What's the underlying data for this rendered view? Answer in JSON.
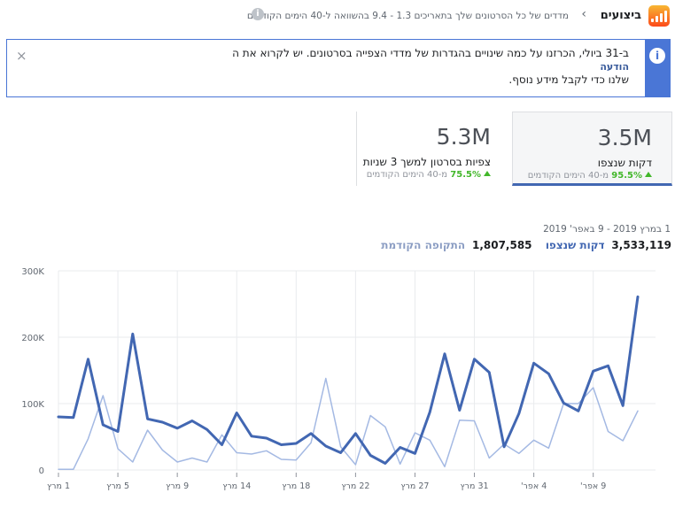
{
  "header": {
    "title": "ביצועים",
    "description": "מדדים של כל הסרטונים שלך בתאריכים 1.3 - 9.4 בהשוואה ל-40 הימים הקודמים",
    "icon": "analytics-bars-icon",
    "info_icon": "info-icon"
  },
  "notice": {
    "text": "ב-31 ביולי, הכרזנו על כמה שינויים בהגדרות של מדדי הצפייה בסרטונים. יש לקרוא את ה",
    "link": "הודעה",
    "text2": "שלנו כדי לקבל מידע נוסף.",
    "icon": "info-icon",
    "close": "×"
  },
  "cards": [
    {
      "value": "3.5M",
      "label": "דקות שנצפו",
      "pct": "95.5%",
      "change_text": "מ-40 הימים הקודמים"
    },
    {
      "value": "5.3M",
      "label": "צפיות בסרטון למשך 3 שניות",
      "pct": "75.5%",
      "change_text": "מ-40 הימים הקודמים"
    }
  ],
  "summary": {
    "date_range": "1 במרץ 2019 - 9 באפר' 2019",
    "current_value": "3,533,119",
    "current_label": "דקות שנצפו",
    "previous_value": "1,807,585",
    "previous_label": "התקופה הקודמת"
  },
  "colors": {
    "current": "#4267b2",
    "previous": "#a4b9e3",
    "accent": "#4a76d6",
    "positive": "#42b72a"
  },
  "chart_data": {
    "type": "line",
    "ylim": [
      0,
      300000
    ],
    "yticks": [
      0,
      100000,
      200000,
      300000
    ],
    "ytick_labels": [
      "0",
      "100K",
      "200K",
      "300K"
    ],
    "xtick_labels": [
      "1 מרץ",
      "5 מרץ",
      "9 מרץ",
      "14 מרץ",
      "18 מרץ",
      "22 מרץ",
      "27 מרץ",
      "31 מרץ",
      "4 אפר'",
      "9 אפר'"
    ],
    "xtick_index": [
      0,
      4,
      8,
      12,
      16,
      20,
      24,
      28,
      32,
      36
    ],
    "series": [
      {
        "name": "דקות שנצפו",
        "values": [
          80000,
          79000,
          167000,
          68000,
          58000,
          205000,
          77000,
          72000,
          63000,
          74000,
          61000,
          38000,
          86000,
          51000,
          48000,
          38000,
          40000,
          55000,
          36000,
          26000,
          55000,
          22000,
          10000,
          34000,
          25000,
          87000,
          175000,
          90000,
          167000,
          147000,
          35000,
          85000,
          161000,
          145000,
          101000,
          89000,
          149000,
          157000,
          97000,
          261000
        ]
      },
      {
        "name": "התקופה הקודמת",
        "values": [
          1000,
          1000,
          47000,
          112000,
          32000,
          12000,
          60000,
          30000,
          12000,
          18000,
          12000,
          53000,
          26000,
          24000,
          29000,
          16000,
          15000,
          41000,
          138000,
          35000,
          8000,
          82000,
          65000,
          9000,
          56000,
          45000,
          5000,
          75000,
          74000,
          18000,
          39000,
          25000,
          45000,
          33000,
          100000,
          100000,
          124000,
          58000,
          44000,
          89000
        ]
      }
    ]
  }
}
